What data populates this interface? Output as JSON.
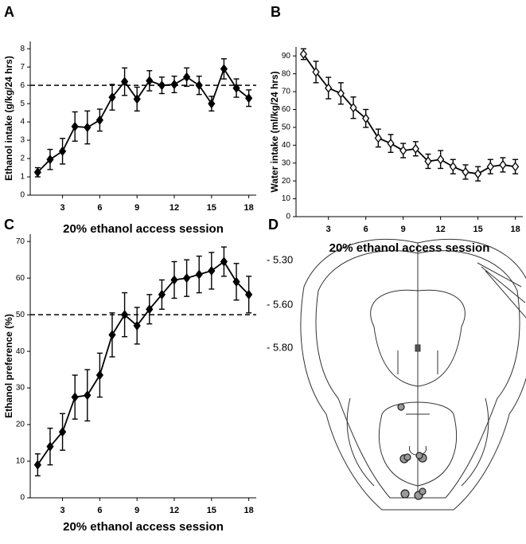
{
  "chart_data": [
    {
      "type": "line",
      "panel": "A",
      "xlabel": "20% ethanol access session",
      "ylabel": "Ethanol intake (g/kg/24 hrs)",
      "x": [
        1,
        2,
        3,
        4,
        5,
        6,
        7,
        8,
        9,
        10,
        11,
        12,
        13,
        14,
        15,
        16,
        17,
        18
      ],
      "xlim": [
        0.4,
        18.6
      ],
      "xticks": [
        3,
        6,
        9,
        12,
        15,
        18
      ],
      "ylim": [
        0,
        8.4
      ],
      "yticks": [
        0,
        1,
        2,
        3,
        4,
        5,
        6,
        7,
        8
      ],
      "reference_line": 6,
      "series": [
        {
          "color": "#000000",
          "marker": "filled-diamond",
          "values": [
            1.25,
            1.95,
            2.4,
            3.75,
            3.7,
            4.1,
            5.35,
            6.2,
            5.25,
            6.25,
            6.0,
            6.05,
            6.45,
            6.0,
            5.0,
            6.9,
            5.85,
            5.3
          ],
          "errors": [
            0.25,
            0.55,
            0.7,
            0.8,
            0.9,
            0.6,
            0.7,
            0.75,
            0.65,
            0.55,
            0.45,
            0.45,
            0.5,
            0.5,
            0.4,
            0.55,
            0.5,
            0.45
          ]
        }
      ]
    },
    {
      "type": "line",
      "panel": "B",
      "xlabel": "20% ethanol access session",
      "ylabel": "Water intake (ml/kg/24 hrs)",
      "x": [
        1,
        2,
        3,
        4,
        5,
        6,
        7,
        8,
        9,
        10,
        11,
        12,
        13,
        14,
        15,
        16,
        17,
        18
      ],
      "xlim": [
        0.4,
        18.6
      ],
      "xticks": [
        3,
        6,
        9,
        12,
        15,
        18
      ],
      "ylim": [
        0,
        95
      ],
      "yticks": [
        0,
        10,
        20,
        30,
        40,
        50,
        60,
        70,
        80,
        90
      ],
      "series": [
        {
          "color": "#000000",
          "marker": "open-diamond",
          "values": [
            91,
            81,
            72,
            69,
            61,
            55,
            44,
            41,
            37,
            38,
            31,
            32,
            28,
            25,
            24,
            28,
            29,
            28
          ],
          "errors": [
            3,
            6,
            6,
            6,
            6,
            5,
            5,
            5,
            4,
            4,
            4,
            5,
            4,
            4,
            4,
            4,
            4,
            4
          ]
        }
      ]
    },
    {
      "type": "line",
      "panel": "C",
      "xlabel": "20% ethanol access session",
      "ylabel": "Ethanol preference (%)",
      "x": [
        1,
        2,
        3,
        4,
        5,
        6,
        7,
        8,
        9,
        10,
        11,
        12,
        13,
        14,
        15,
        16,
        17,
        18
      ],
      "xlim": [
        0.4,
        18.6
      ],
      "xticks": [
        3,
        6,
        9,
        12,
        15,
        18
      ],
      "ylim": [
        0,
        72
      ],
      "yticks": [
        0,
        10,
        20,
        30,
        40,
        50,
        60,
        70
      ],
      "reference_line": 50,
      "series": [
        {
          "color": "#000000",
          "marker": "filled-diamond",
          "values": [
            9,
            14,
            18,
            27.5,
            28,
            33.5,
            44.5,
            50,
            47,
            51.5,
            55.5,
            59.5,
            60,
            61,
            62,
            64.5,
            59,
            55.5
          ],
          "errors": [
            3,
            5,
            5,
            6,
            7,
            6,
            6,
            6,
            5,
            4,
            4,
            5,
            5,
            5,
            5,
            4,
            5,
            5
          ]
        }
      ]
    }
  ],
  "diagram": {
    "panel": "D",
    "levels": [
      "- 5.30",
      "- 5.60",
      "- 5.80"
    ]
  }
}
